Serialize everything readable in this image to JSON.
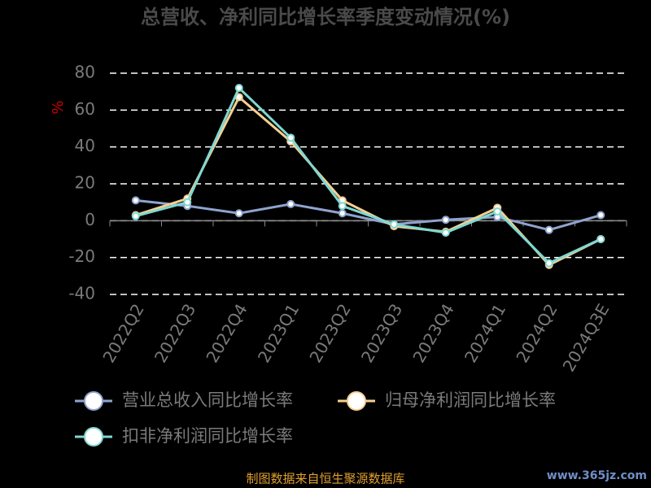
{
  "chart_data": {
    "type": "line",
    "title": "总营收、净利同比增长率季度变动情况(%)",
    "y_label": "%",
    "categories": [
      "2022Q2",
      "2022Q3",
      "2022Q4",
      "2023Q1",
      "2023Q2",
      "2023Q3",
      "2023Q4",
      "2024Q1",
      "2024Q2",
      "2024Q3E"
    ],
    "series": [
      {
        "name": "营业总收入同比增长率",
        "color": "#8fa3cf",
        "values": [
          11,
          8,
          4,
          9,
          4,
          -2,
          0.5,
          2,
          -5,
          3
        ]
      },
      {
        "name": "归母净利润同比增长率",
        "color": "#f7cf92",
        "values": [
          3,
          12,
          67,
          43,
          11,
          -3,
          -6,
          7,
          -24,
          -10
        ]
      },
      {
        "name": "扣非净利润同比增长率",
        "color": "#7fd8d2",
        "values": [
          2.5,
          10,
          72,
          45,
          8,
          -2,
          -6.5,
          5,
          -23,
          -10
        ]
      }
    ],
    "ylim": [
      -40,
      80
    ],
    "yticks": [
      -40,
      -20,
      0,
      20,
      40,
      60,
      80
    ],
    "grid": true,
    "source": "制图数据来自恒生聚源数据库",
    "watermark": "www.365jz.com"
  }
}
